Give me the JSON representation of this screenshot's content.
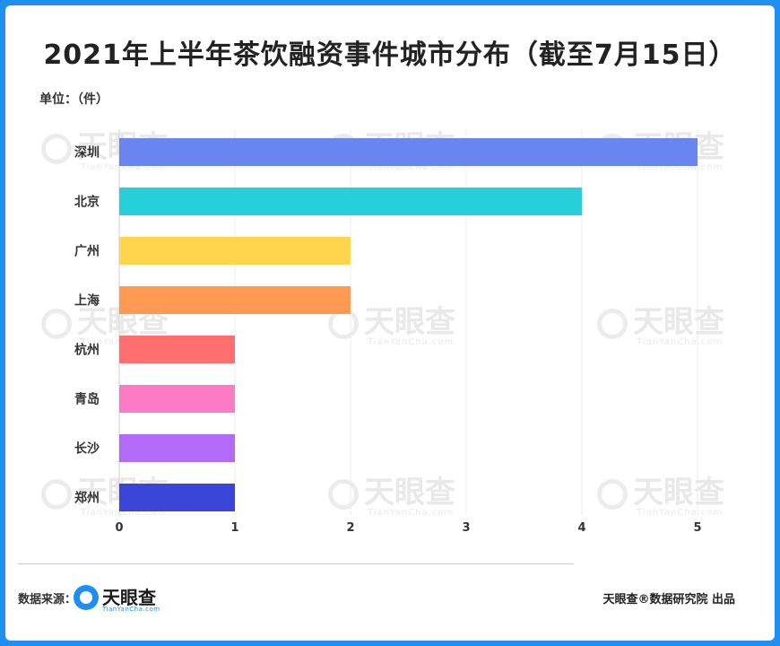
{
  "title": "2021年上半年茶饮融资事件城市分布（截至7月15日）",
  "unit_label": "单位：（件）",
  "footer": {
    "source_label": "数据来源：",
    "logo_name": "天眼查",
    "logo_sub": "TianYanCha.com",
    "credit": "天眼查®数据研究院 出品"
  },
  "watermark": {
    "name": "天眼查",
    "sub": "TianYanCha.com"
  },
  "chart_data": {
    "type": "bar",
    "orientation": "horizontal",
    "categories": [
      "深圳",
      "北京",
      "广州",
      "上海",
      "杭州",
      "青岛",
      "长沙",
      "郑州"
    ],
    "values": [
      5,
      4,
      2,
      2,
      1,
      1,
      1,
      1
    ],
    "colors": [
      "#6a84f0",
      "#26cfd9",
      "#ffd54d",
      "#ff9a52",
      "#ff6f6f",
      "#fb7cc4",
      "#b16bf7",
      "#3b46d6"
    ],
    "xlim": [
      0,
      5
    ],
    "xticks": [
      "0",
      "1",
      "2",
      "3",
      "4",
      "5"
    ],
    "grid": true
  }
}
